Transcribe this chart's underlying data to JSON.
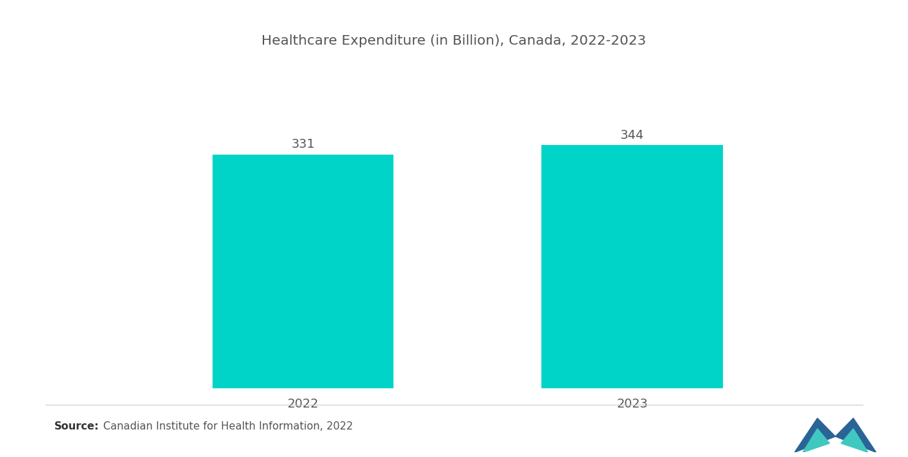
{
  "title": "Healthcare Expenditure (in Billion), Canada, 2022-2023",
  "categories": [
    "2022",
    "2023"
  ],
  "values": [
    331,
    344
  ],
  "bar_color": "#00D4C8",
  "bar_width": 0.55,
  "value_labels": [
    "331",
    "344"
  ],
  "source_bold": "Source:",
  "source_text": "Canadian Institute for Health Information, 2022",
  "background_color": "#ffffff",
  "title_fontsize": 14.5,
  "label_fontsize": 13,
  "value_fontsize": 13,
  "source_fontsize": 11,
  "ylim": [
    0,
    420
  ],
  "title_color": "#555555",
  "label_color": "#555555",
  "value_color": "#555555",
  "x_positions": [
    1,
    2
  ],
  "xlim": [
    0.3,
    2.7
  ]
}
